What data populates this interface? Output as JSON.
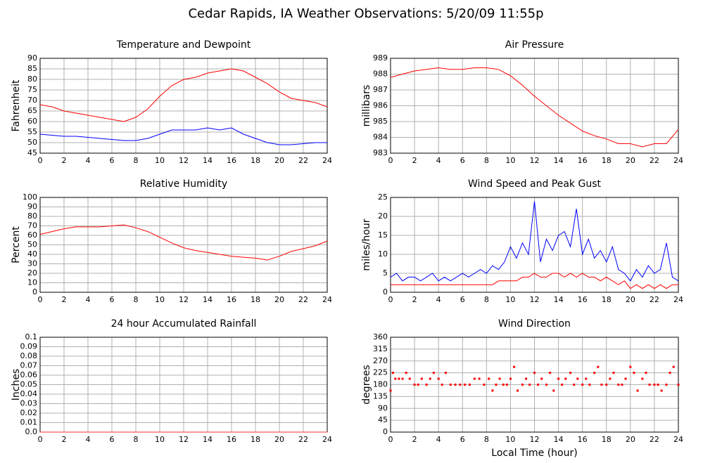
{
  "title": "Cedar Rapids, IA Weather Observations: 5/20/09 11:55p",
  "chart_data": [
    {
      "type": "line",
      "title": "Temperature and Dewpoint",
      "ylabel": "Fahrenheit",
      "x": [
        0,
        1,
        2,
        3,
        4,
        5,
        6,
        7,
        8,
        9,
        10,
        11,
        12,
        13,
        14,
        15,
        16,
        17,
        18,
        19,
        20,
        21,
        22,
        23,
        24
      ],
      "series": [
        {
          "color": "#ff0000",
          "values": [
            68,
            67,
            65,
            64,
            63,
            62,
            61,
            60,
            62,
            66,
            72,
            77,
            80,
            81,
            83,
            84,
            85,
            84,
            81,
            78,
            74,
            71,
            70,
            69,
            67
          ]
        },
        {
          "color": "#0000ff",
          "values": [
            54,
            53.5,
            53,
            53,
            52.5,
            52,
            51.5,
            51,
            51,
            52,
            54,
            56,
            56,
            56,
            57,
            56,
            57,
            54,
            52,
            50,
            49,
            49,
            49.5,
            50,
            50
          ]
        }
      ],
      "xlim": [
        0,
        24
      ],
      "xticks": [
        0,
        2,
        4,
        6,
        8,
        10,
        12,
        14,
        16,
        18,
        20,
        22,
        24
      ],
      "ylim": [
        45,
        90
      ],
      "yticks": [
        45,
        50,
        55,
        60,
        65,
        70,
        75,
        80,
        85,
        90
      ],
      "grid": true
    },
    {
      "type": "line",
      "title": "Air Pressure",
      "ylabel": "millibars",
      "x": [
        0,
        1,
        2,
        3,
        4,
        5,
        6,
        7,
        8,
        9,
        10,
        11,
        12,
        13,
        14,
        15,
        16,
        17,
        18,
        19,
        20,
        21,
        22,
        23,
        24
      ],
      "series": [
        {
          "color": "#ff0000",
          "values": [
            987.8,
            988,
            988.2,
            988.3,
            988.4,
            988.3,
            988.3,
            988.4,
            988.4,
            988.3,
            987.9,
            987.3,
            986.6,
            986,
            985.4,
            984.9,
            984.4,
            984.1,
            983.9,
            983.6,
            983.6,
            983.4,
            983.6,
            983.6,
            984.5
          ]
        }
      ],
      "xlim": [
        0,
        24
      ],
      "xticks": [
        0,
        2,
        4,
        6,
        8,
        10,
        12,
        14,
        16,
        18,
        20,
        22,
        24
      ],
      "ylim": [
        983,
        989
      ],
      "yticks": [
        983,
        984,
        985,
        986,
        987,
        988,
        989
      ],
      "grid": true
    },
    {
      "type": "line",
      "title": "Relative Humidity",
      "ylabel": "Percent",
      "x": [
        0,
        1,
        2,
        3,
        4,
        5,
        6,
        7,
        8,
        9,
        10,
        11,
        12,
        13,
        14,
        15,
        16,
        17,
        18,
        19,
        20,
        21,
        22,
        23,
        24
      ],
      "series": [
        {
          "color": "#ff0000",
          "values": [
            61,
            64,
            67,
            69,
            69,
            69,
            70,
            71,
            68,
            64,
            58,
            52,
            47,
            44,
            42,
            40,
            38,
            37,
            36,
            34,
            38,
            43,
            46,
            49,
            54
          ]
        }
      ],
      "xlim": [
        0,
        24
      ],
      "xticks": [
        0,
        2,
        4,
        6,
        8,
        10,
        12,
        14,
        16,
        18,
        20,
        22,
        24
      ],
      "ylim": [
        0,
        100
      ],
      "yticks": [
        0,
        10,
        20,
        30,
        40,
        50,
        60,
        70,
        80,
        90,
        100
      ],
      "grid": true
    },
    {
      "type": "line",
      "title": "Wind Speed and Peak Gust",
      "ylabel": "miles/hour",
      "x": [
        0,
        0.5,
        1,
        1.5,
        2,
        2.5,
        3,
        3.5,
        4,
        4.5,
        5,
        5.5,
        6,
        6.5,
        7,
        7.5,
        8,
        8.5,
        9,
        9.5,
        10,
        10.5,
        11,
        11.5,
        12,
        12.5,
        13,
        13.5,
        14,
        14.5,
        15,
        15.5,
        16,
        16.5,
        17,
        17.5,
        18,
        18.5,
        19,
        19.5,
        20,
        20.5,
        21,
        21.5,
        22,
        22.5,
        23,
        23.5,
        24
      ],
      "series": [
        {
          "color": "#0000ff",
          "values": [
            4,
            5,
            3,
            4,
            4,
            3,
            4,
            5,
            3,
            4,
            3,
            4,
            5,
            4,
            5,
            6,
            5,
            7,
            6,
            8,
            12,
            9,
            13,
            10,
            24,
            8,
            14,
            11,
            15,
            16,
            12,
            22,
            10,
            14,
            9,
            11,
            8,
            12,
            6,
            5,
            3,
            6,
            4,
            7,
            5,
            6,
            13,
            4,
            3
          ]
        },
        {
          "color": "#ff0000",
          "values": [
            2,
            2,
            2,
            2,
            2,
            2,
            2,
            2,
            2,
            2,
            2,
            2,
            2,
            2,
            2,
            2,
            2,
            2,
            3,
            3,
            3,
            3,
            4,
            4,
            5,
            4,
            4,
            5,
            5,
            4,
            5,
            4,
            5,
            4,
            4,
            3,
            4,
            3,
            2,
            3,
            1,
            2,
            1,
            2,
            1,
            2,
            1,
            2,
            2
          ]
        }
      ],
      "xlim": [
        0,
        24
      ],
      "xticks": [
        0,
        2,
        4,
        6,
        8,
        10,
        12,
        14,
        16,
        18,
        20,
        22,
        24
      ],
      "ylim": [
        0,
        25
      ],
      "yticks": [
        0,
        5,
        10,
        15,
        20,
        25
      ],
      "grid": true
    },
    {
      "type": "line",
      "title": "24 hour Accumulated Rainfall",
      "ylabel": "Inches",
      "x": [
        0,
        24
      ],
      "series": [
        {
          "color": "#ff3030",
          "values": [
            0,
            0
          ]
        }
      ],
      "xlim": [
        0,
        24
      ],
      "xticks": [
        0,
        2,
        4,
        6,
        8,
        10,
        12,
        14,
        16,
        18,
        20,
        22,
        24
      ],
      "ylim": [
        0,
        0.1
      ],
      "yticks": [
        {
          "value": 0,
          "label": "0.0"
        },
        0.01,
        0.02,
        0.03,
        0.04,
        0.05,
        0.06,
        0.07,
        0.08,
        0.09,
        0.1
      ],
      "grid": true
    },
    {
      "type": "scatter",
      "title": "Wind Direction",
      "ylabel": "degrees",
      "xlabel": "Local Time (hour)",
      "color": "#ff0000",
      "x": [
        0,
        0.2,
        0.4,
        0.7,
        1,
        1.3,
        1.6,
        2,
        2.3,
        2.6,
        3,
        3.3,
        3.6,
        4,
        4.3,
        4.6,
        5,
        5.4,
        5.8,
        6.2,
        6.6,
        7,
        7.4,
        7.8,
        8.2,
        8.5,
        8.8,
        9.1,
        9.4,
        9.7,
        10,
        10.3,
        10.6,
        11,
        11.3,
        11.6,
        12,
        12.3,
        12.6,
        13,
        13.3,
        13.6,
        14,
        14.3,
        14.6,
        15,
        15.3,
        15.6,
        16,
        16.3,
        16.6,
        17,
        17.3,
        17.6,
        18,
        18.3,
        18.6,
        19,
        19.3,
        19.6,
        20,
        20.3,
        20.6,
        21,
        21.3,
        21.6,
        22,
        22.3,
        22.6,
        23,
        23.3,
        23.6,
        24
      ],
      "values": [
        157.5,
        225,
        202.5,
        202.5,
        202.5,
        225,
        202.5,
        180,
        180,
        202.5,
        180,
        202.5,
        225,
        202.5,
        180,
        225,
        180,
        180,
        180,
        180,
        180,
        202.5,
        202.5,
        180,
        202.5,
        157.5,
        180,
        202.5,
        180,
        180,
        202.5,
        247.5,
        157.5,
        180,
        202.5,
        180,
        225,
        180,
        202.5,
        180,
        225,
        157.5,
        202.5,
        180,
        202.5,
        225,
        180,
        202.5,
        180,
        202.5,
        180,
        225,
        247.5,
        180,
        180,
        202.5,
        225,
        180,
        180,
        202.5,
        247.5,
        225,
        157.5,
        202.5,
        225,
        180,
        180,
        180,
        157.5,
        180,
        225,
        247.5,
        180
      ],
      "xlim": [
        0,
        24
      ],
      "xticks": [
        0,
        2,
        4,
        6,
        8,
        10,
        12,
        14,
        16,
        18,
        20,
        22,
        24
      ],
      "ylim": [
        0,
        360
      ],
      "yticks": [
        0,
        45,
        90,
        135,
        180,
        225,
        270,
        315,
        360
      ],
      "grid": true
    }
  ]
}
